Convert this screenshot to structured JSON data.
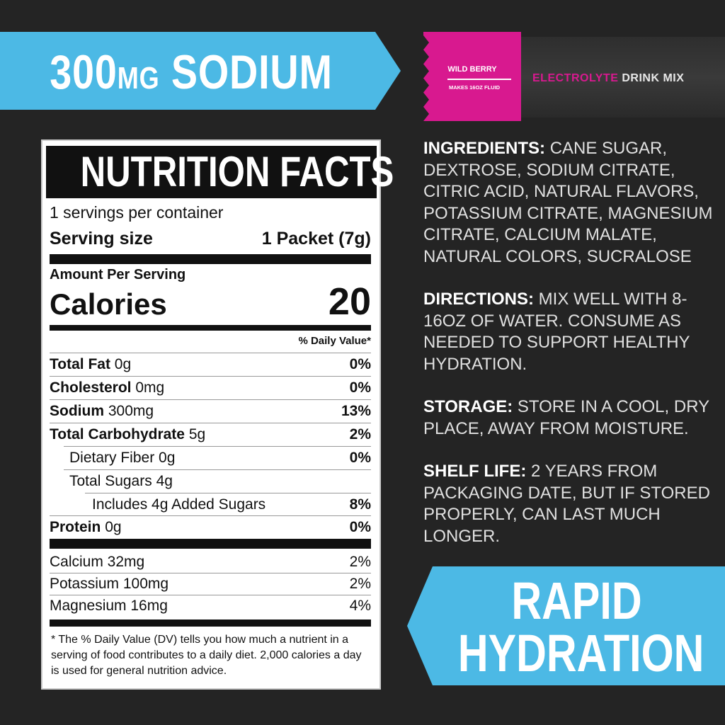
{
  "top_banner": {
    "amount": "300",
    "unit": "MG",
    "label": "SODIUM"
  },
  "packet": {
    "flavor": "WILD BERRY",
    "makes": "MAKES 16OZ FLUID",
    "product_accent": "ELECTROLYTE",
    "product_rest": "DRINK MIX"
  },
  "nutrition": {
    "title": "NUTRITION FACTS",
    "servings": "1 servings per container",
    "serving_size_label": "Serving size",
    "serving_size_value": "1 Packet (7g)",
    "amount_per_serving": "Amount Per Serving",
    "calories_label": "Calories",
    "calories_value": "20",
    "dv_header": "% Daily Value*",
    "rows": [
      {
        "name": "Total Fat",
        "amount": "0g",
        "dv": "0%"
      },
      {
        "name": "Cholesterol",
        "amount": "0mg",
        "dv": "0%"
      },
      {
        "name": "Sodium",
        "amount": "300mg",
        "dv": "13%"
      },
      {
        "name": "Total Carbohydrate",
        "amount": "5g",
        "dv": "2%"
      },
      {
        "name": "Dietary Fiber 0g",
        "dv": "0%"
      },
      {
        "name": "Total Sugars 4g",
        "dv": ""
      },
      {
        "name": "Includes 4g Added Sugars",
        "dv": "8%"
      },
      {
        "name": "Protein",
        "amount": "0g",
        "dv": "0%"
      }
    ],
    "minerals": [
      {
        "name": "Calcium 32mg",
        "dv": "2%"
      },
      {
        "name": "Potassium 100mg",
        "dv": "2%"
      },
      {
        "name": "Magnesium 16mg",
        "dv": "4%"
      }
    ],
    "footnote": "* The % Daily Value (DV) tells you how much a nutrient in a serving of food contributes to a daily diet. 2,000 calories a day is used for general nutrition advice."
  },
  "info": [
    {
      "heading": "INGREDIENTS:",
      "text": "CANE SUGAR, DEXTROSE, SODIUM CITRATE, CITRIC ACID, NATURAL FLAVORS, POTASSIUM CITRATE, MAGNESIUM CITRATE, CALCIUM MALATE, NATURAL COLORS, SUCRALOSE"
    },
    {
      "heading": "DIRECTIONS:",
      "text": "MIX WELL WITH 8-16OZ OF WATER. CONSUME AS NEEDED TO SUPPORT HEALTHY HYDRATION."
    },
    {
      "heading": "STORAGE:",
      "text": "STORE IN A COOL, DRY PLACE, AWAY FROM MOISTURE."
    },
    {
      "heading": "SHELF LIFE:",
      "text": "2 YEARS FROM PACKAGING DATE, BUT IF STORED PROPERLY, CAN LAST MUCH LONGER."
    }
  ],
  "bottom_banner": {
    "line1": "RAPID",
    "line2": "HYDRATION"
  },
  "colors": {
    "accent_blue": "#4cb9e5",
    "accent_pink": "#d8198f",
    "background": "#242424"
  }
}
